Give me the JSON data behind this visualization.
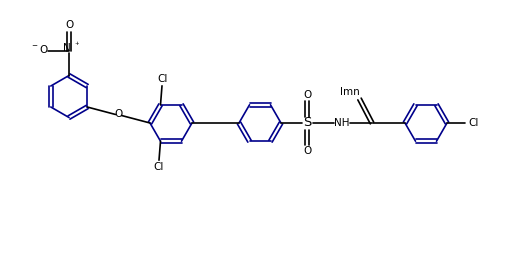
{
  "bg_color": "#ffffff",
  "line_color": "#000000",
  "dark_blue": "#00008B",
  "fig_width": 5.21,
  "fig_height": 2.59,
  "dpi": 100,
  "lw": 1.2,
  "r_hex": 0.38,
  "xlim": [
    0,
    10.42
  ],
  "ylim": [
    0,
    5.18
  ]
}
